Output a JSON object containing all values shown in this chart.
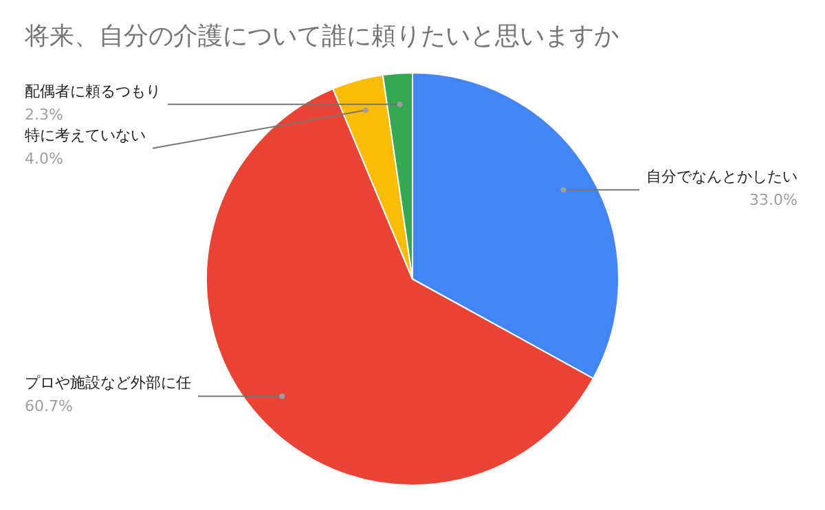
{
  "chart_data": {
    "type": "pie",
    "title": "将来、自分の介護について誰に頼りたいと思いますか",
    "categories": [
      "自分でなんとかしたい",
      "プロや施設など外部に任",
      "特に考えていない",
      "配偶者に頼るつもり"
    ],
    "values": [
      33.0,
      60.7,
      4.0,
      2.3
    ],
    "value_labels": [
      "33.0%",
      "60.7%",
      "4.0%",
      "2.3%"
    ],
    "colors": [
      "#4285f4",
      "#ea4335",
      "#fbbc04",
      "#34a853"
    ],
    "legend": false
  }
}
